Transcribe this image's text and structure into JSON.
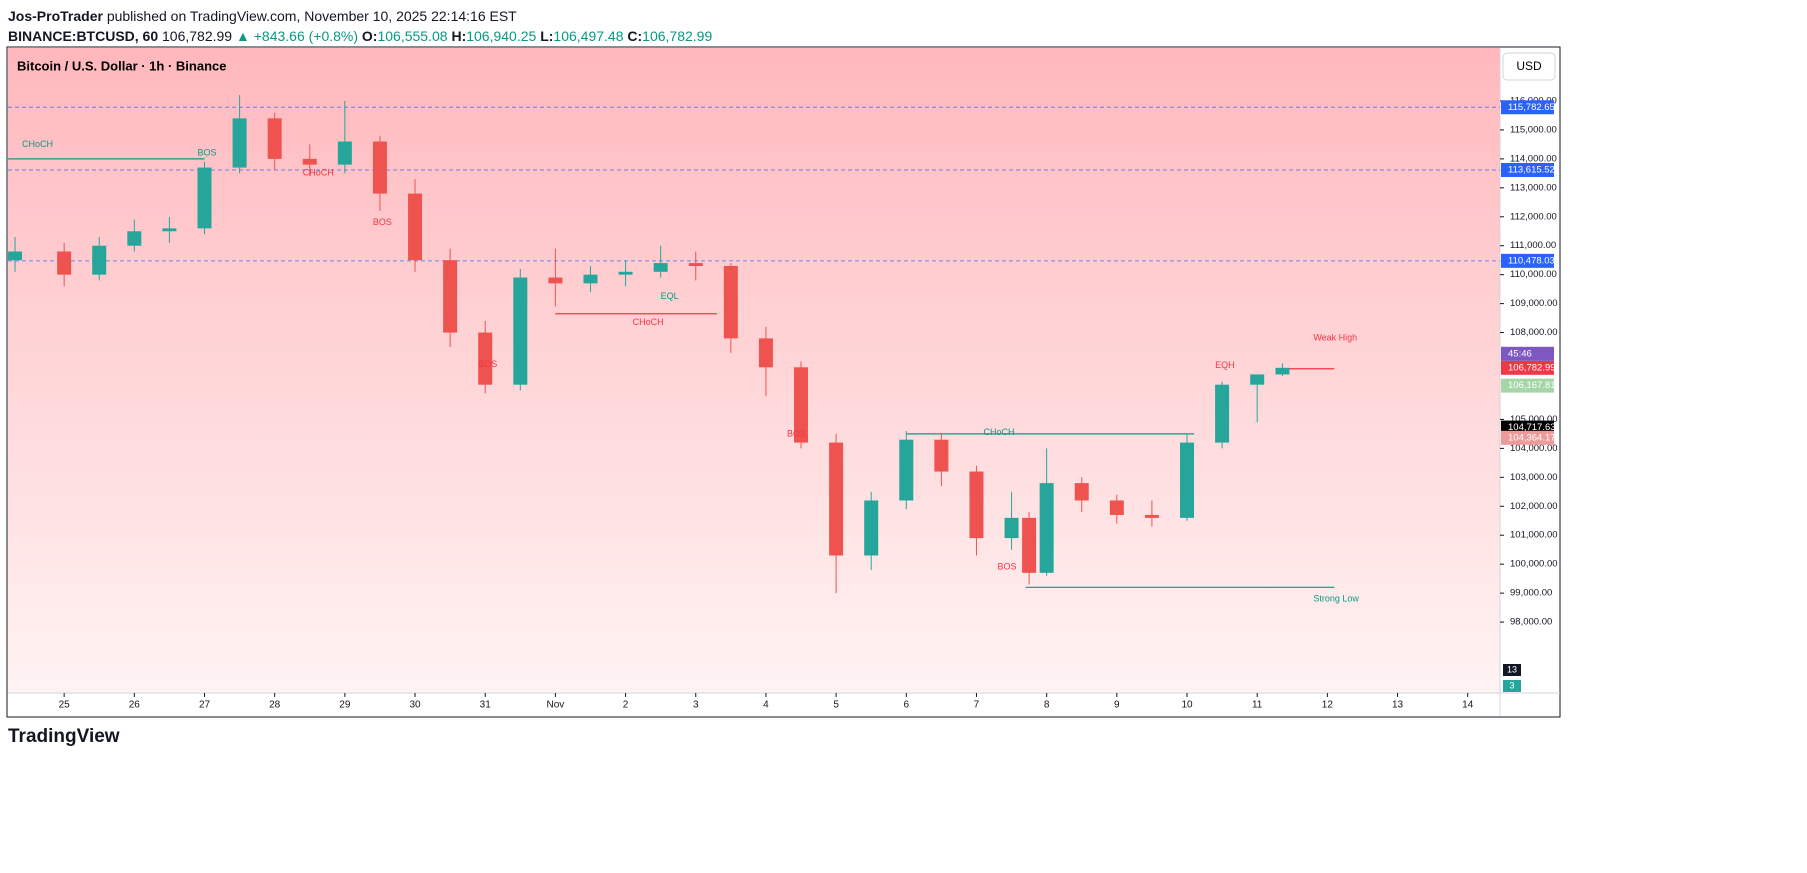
{
  "header": {
    "author": "Jos-ProTrader",
    "published": "published on TradingView.com, November 10, 2025 22:14:16 EST",
    "symbol": "BINANCE:BTCUSD, 60",
    "last": "106,782.99",
    "change": "▲ +843.66 (+0.8%)",
    "ohlc": [
      {
        "label": "O:",
        "value": "106,555.08"
      },
      {
        "label": "H:",
        "value": "106,940.25"
      },
      {
        "label": "L:",
        "value": "106,497.48"
      },
      {
        "label": "C:",
        "value": "106,782.99"
      }
    ]
  },
  "footer": "TradingView",
  "chart_data": {
    "type": "candlestick",
    "title": "Bitcoin / U.S. Dollar · 1h · Binance",
    "currency": "USD",
    "countdown": "45:46",
    "x": [
      -0.7,
      0,
      0.5,
      1,
      1.5,
      2,
      2.5,
      3,
      3.5,
      4,
      4.5,
      5,
      5.5,
      6,
      6.5,
      7,
      7.5,
      8,
      8.5,
      9,
      9.5,
      10,
      10.5,
      11,
      11.5,
      12,
      12.5,
      13,
      13.5,
      13.75,
      14,
      14.5,
      15,
      15.5,
      16,
      16.5,
      17,
      17.36
    ],
    "series": [
      {
        "name": "BTCUSD",
        "up_color": "#26a69a",
        "down_color": "#ef5350",
        "open": [
          110500,
          110800,
          110000,
          111000,
          111500,
          111600,
          113700,
          115400,
          114000,
          113800,
          114600,
          112800,
          110500,
          108000,
          106200,
          109900,
          109700,
          110000,
          110100,
          110400,
          110300,
          107800,
          106800,
          104200,
          100300,
          102200,
          104300,
          103200,
          100900,
          101600,
          99700,
          102800,
          102200,
          101700,
          101600,
          104200,
          106200,
          106555.08
        ],
        "high": [
          111300,
          111100,
          111300,
          111900,
          112000,
          113900,
          116200,
          115600,
          114500,
          116000,
          114800,
          113300,
          110900,
          108400,
          110200,
          110900,
          110300,
          110500,
          111000,
          110800,
          110400,
          108200,
          107000,
          104500,
          102500,
          104600,
          104500,
          103400,
          102500,
          101800,
          104000,
          103000,
          102400,
          102200,
          104500,
          106300,
          106400,
          106940.25
        ],
        "low": [
          110100,
          109600,
          109800,
          110800,
          111100,
          111400,
          113500,
          113600,
          113400,
          113500,
          112200,
          110100,
          107500,
          105900,
          106000,
          108900,
          109400,
          109600,
          109900,
          109800,
          107300,
          105800,
          104000,
          99000,
          99800,
          101900,
          102700,
          100300,
          100500,
          99300,
          99600,
          101800,
          101400,
          101300,
          101500,
          104000,
          104900,
          106497.48
        ],
        "close": [
          110800,
          110000,
          111000,
          111500,
          111600,
          113700,
          115400,
          114000,
          113800,
          114600,
          112800,
          110500,
          108000,
          106200,
          109900,
          109700,
          110000,
          110100,
          110400,
          110300,
          107800,
          106800,
          104200,
          100300,
          102200,
          104300,
          103200,
          100900,
          101600,
          99700,
          102800,
          102200,
          101700,
          101600,
          104200,
          106200,
          106555.08,
          106782.99
        ]
      }
    ],
    "xlim": [
      -0.8,
      20.46
    ],
    "xticks": [
      {
        "value": 0,
        "label": "25"
      },
      {
        "value": 1,
        "label": "26"
      },
      {
        "value": 2,
        "label": "27"
      },
      {
        "value": 3,
        "label": "28"
      },
      {
        "value": 4,
        "label": "29"
      },
      {
        "value": 5,
        "label": "30"
      },
      {
        "value": 6,
        "label": "31"
      },
      {
        "value": 7,
        "label": "Nov"
      },
      {
        "value": 8,
        "label": "2"
      },
      {
        "value": 9,
        "label": "3"
      },
      {
        "value": 10,
        "label": "4"
      },
      {
        "value": 11,
        "label": "5"
      },
      {
        "value": 12,
        "label": "6"
      },
      {
        "value": 13,
        "label": "7"
      },
      {
        "value": 14,
        "label": "8"
      },
      {
        "value": 15,
        "label": "9"
      },
      {
        "value": 16,
        "label": "10"
      },
      {
        "value": 17,
        "label": "11"
      },
      {
        "value": 18,
        "label": "12"
      },
      {
        "value": 19,
        "label": "13"
      },
      {
        "value": 20,
        "label": "14"
      }
    ],
    "ylim": [
      95550,
      117830
    ],
    "yticks": [
      {
        "value": 98000,
        "label": "98,000.00"
      },
      {
        "value": 99000,
        "label": "99,000.00"
      },
      {
        "value": 100000,
        "label": "100,000.00"
      },
      {
        "value": 101000,
        "label": "101,000.00"
      },
      {
        "value": 102000,
        "label": "102,000.00"
      },
      {
        "value": 103000,
        "label": "103,000.00"
      },
      {
        "value": 104000,
        "label": "104,000.00"
      },
      {
        "value": 105000,
        "label": "105,000.00"
      },
      {
        "value": 108000,
        "label": "108,000.00"
      },
      {
        "value": 109000,
        "label": "109,000.00"
      },
      {
        "value": 110000,
        "label": "110,000.00"
      },
      {
        "value": 111000,
        "label": "111,000.00"
      },
      {
        "value": 112000,
        "label": "112,000.00"
      },
      {
        "value": 113000,
        "label": "113,000.00"
      },
      {
        "value": 114000,
        "label": "114,000.00"
      },
      {
        "value": 115000,
        "label": "115,000.00"
      },
      {
        "value": 116000,
        "label": "116,000.00"
      }
    ],
    "price_levels": [
      {
        "value": 115782.65,
        "label": "115,782.65",
        "color": "#2962ff",
        "line": true
      },
      {
        "value": 113615.52,
        "label": "113,615.52",
        "color": "#2962ff",
        "line": true
      },
      {
        "value": 110478.03,
        "label": "110,478.03",
        "color": "#2962ff",
        "line": true
      },
      {
        "value": 106782.99,
        "label": "106,782.99",
        "color": "#f23645",
        "line": false
      },
      {
        "value": 106167.81,
        "label": "106,167.81",
        "color": "#a5d6a7",
        "line": false
      },
      {
        "value": 104717.63,
        "label": "104,717.63",
        "color": "#000000",
        "line": false
      },
      {
        "value": 104364.17,
        "label": "104,364.17",
        "color": "#ef9a9a",
        "line": false
      }
    ],
    "segments": [
      {
        "y": 114000,
        "x": [
          -0.8,
          2
        ],
        "color": "#089981"
      },
      {
        "y": 108650,
        "x": [
          7,
          9.3
        ],
        "color": "#f23645"
      },
      {
        "y": 104500,
        "x": [
          12,
          16.1
        ],
        "color": "#089981"
      },
      {
        "y": 106750,
        "x": [
          17.4,
          18.1
        ],
        "color": "#f23645"
      },
      {
        "y": 99200,
        "x": [
          13.7,
          18.1
        ],
        "color": "#089981"
      }
    ],
    "annotations": [
      {
        "text": "CHoCH",
        "x": -0.6,
        "y": 114500,
        "color": "#089981"
      },
      {
        "text": "BOS",
        "x": 1.9,
        "y": 114200,
        "color": "#089981"
      },
      {
        "text": "CHoCH",
        "x": 3.4,
        "y": 113500,
        "color": "#f23645"
      },
      {
        "text": "BOS",
        "x": 4.4,
        "y": 111800,
        "color": "#f23645"
      },
      {
        "text": "BOS",
        "x": 5.9,
        "y": 106900,
        "color": "#f23645"
      },
      {
        "text": "CHoCH",
        "x": 8.1,
        "y": 108350,
        "color": "#f23645"
      },
      {
        "text": "EQL",
        "x": 8.5,
        "y": 109250,
        "color": "#089981"
      },
      {
        "text": "BOS",
        "x": 10.3,
        "y": 104500,
        "color": "#f23645"
      },
      {
        "text": "CHoCH",
        "x": 13.1,
        "y": 104550,
        "color": "#089981"
      },
      {
        "text": "BOS",
        "x": 13.3,
        "y": 99900,
        "color": "#f23645"
      },
      {
        "text": "EQH",
        "x": 16.4,
        "y": 106850,
        "color": "#f23645"
      },
      {
        "text": "Weak High",
        "x": 17.8,
        "y": 107800,
        "color": "#f23645"
      },
      {
        "text": "Strong Low",
        "x": 17.8,
        "y": 98800,
        "color": "#089981"
      }
    ],
    "volume_markers": [
      {
        "value": 13,
        "color": "#131722"
      },
      {
        "value": 3,
        "color": "#26a69a"
      }
    ]
  }
}
